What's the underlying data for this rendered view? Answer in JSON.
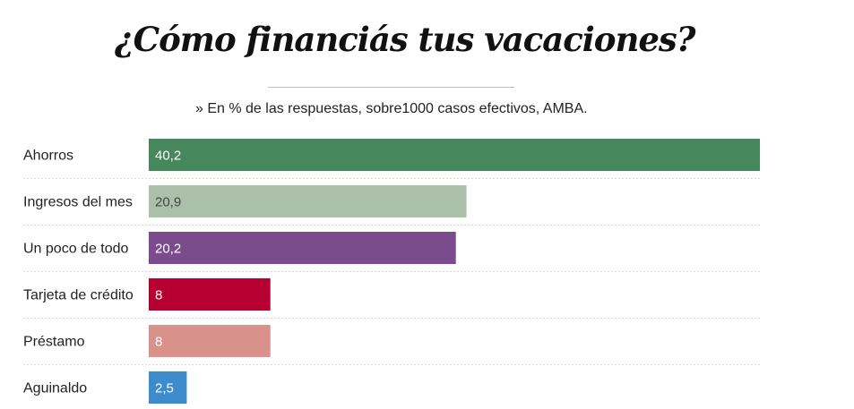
{
  "header": {
    "title": "¿Cómo financiás tus vacaciones?",
    "subtitle": "» En % de las respuestas, sobre1000 casos efectivos, AMBA."
  },
  "chart_data": {
    "type": "bar",
    "orientation": "horizontal",
    "title": "¿Cómo financiás tus vacaciones?",
    "subtitle": "» En % de las respuestas, sobre1000 casos efectivos, AMBA.",
    "categories": [
      "Ahorros",
      "Ingresos del mes",
      "Un poco de todo",
      "Tarjeta de crédito",
      "Préstamo",
      "Aguinaldo"
    ],
    "values": [
      40.2,
      20.9,
      20.2,
      8,
      8,
      2.5
    ],
    "value_labels": [
      "40,2",
      "20,9",
      "20,2",
      "8",
      "8",
      "2,5"
    ],
    "colors": [
      "#46875b",
      "#abc0a8",
      "#7a4c8e",
      "#b50031",
      "#d9918c",
      "#3d8bca"
    ],
    "label_colors": [
      "#ffffff",
      "#444444",
      "#ffffff",
      "#ffffff",
      "#ffffff",
      "#ffffff"
    ],
    "separator_color": "#d6d6d6",
    "xlim": [
      0,
      40.2
    ],
    "xlabel": "",
    "ylabel": "",
    "grid": false,
    "legend": "none"
  }
}
